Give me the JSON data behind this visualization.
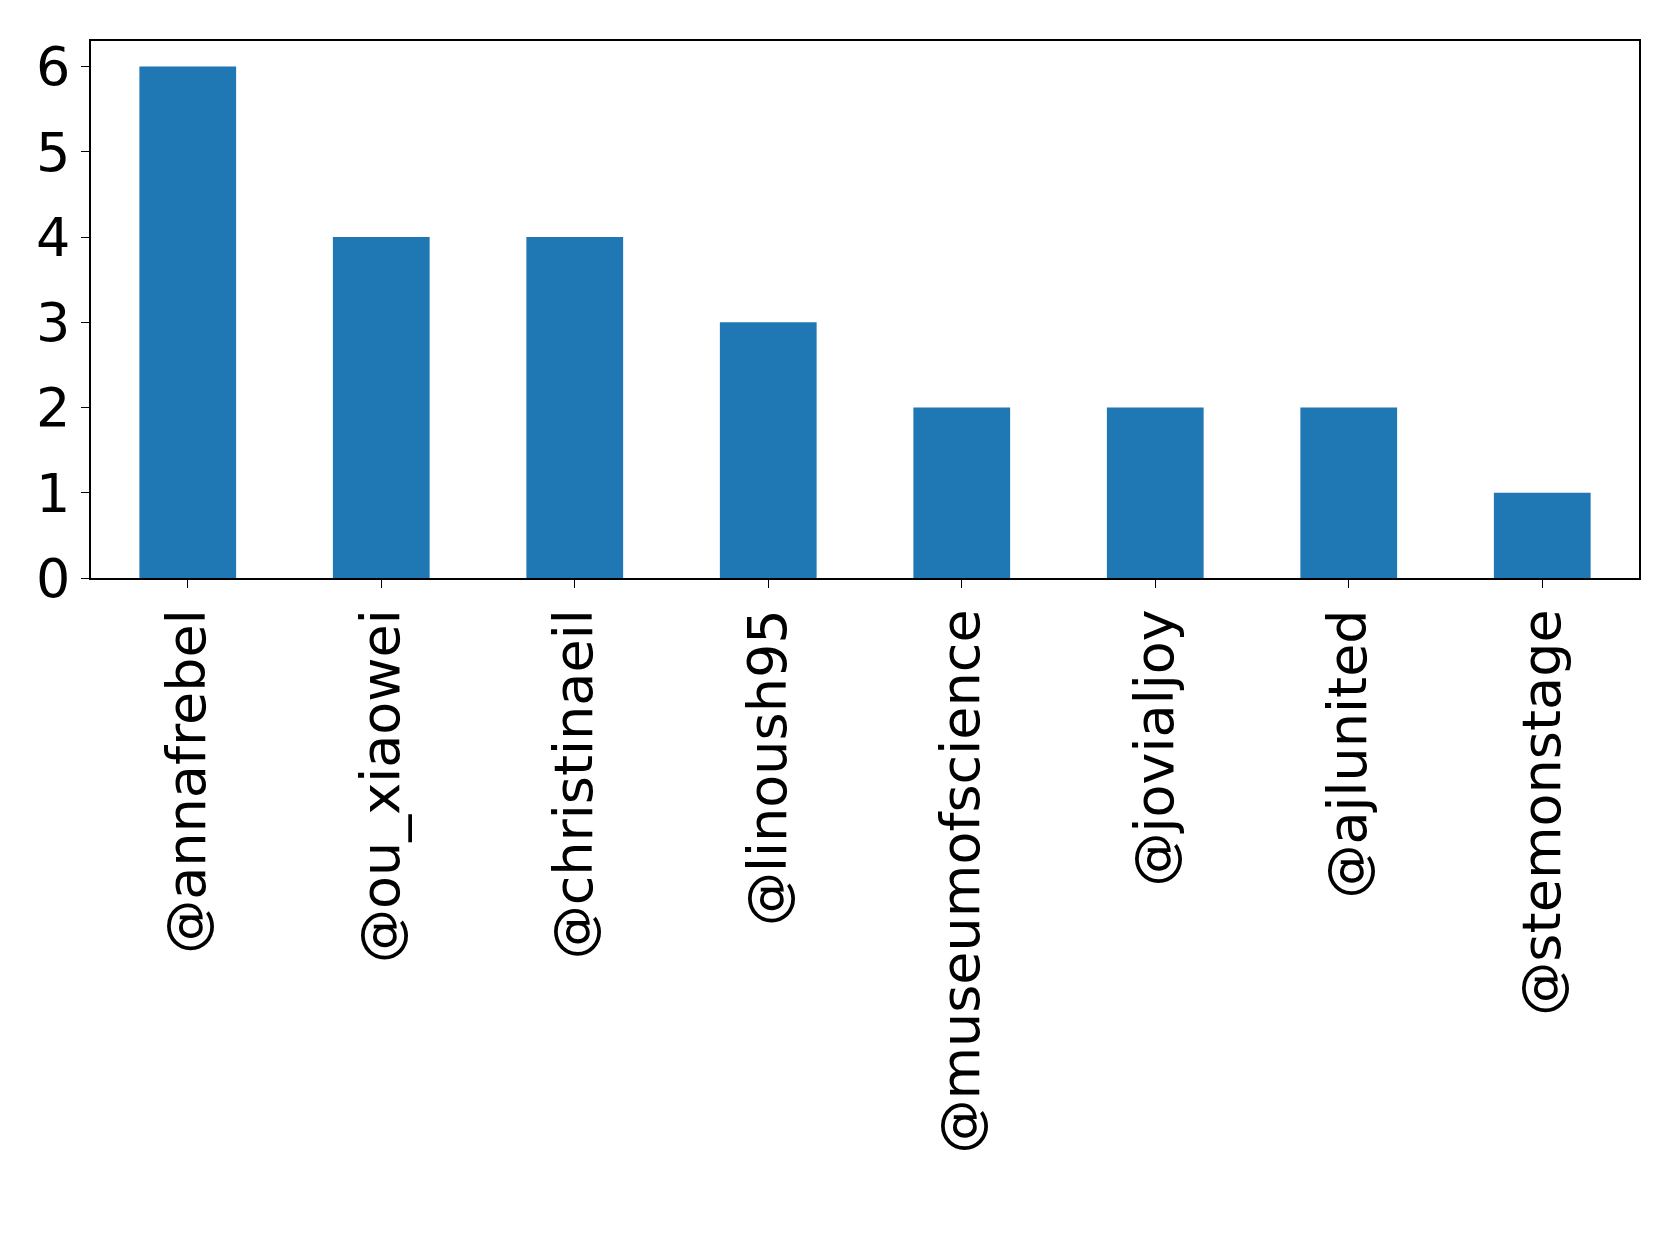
{
  "chart_data": {
    "type": "bar",
    "categories": [
      "@annafrebel",
      "@ou_xiaowei",
      "@christinaeil",
      "@linoush95",
      "@museumofscience",
      "@jovialjoy",
      "@ajlunited",
      "@stemonstage"
    ],
    "values": [
      6,
      4,
      4,
      3,
      2,
      2,
      2,
      1
    ],
    "color": "#1f77b4",
    "ylim": [
      0,
      6.3
    ],
    "yticks": [
      0,
      1,
      2,
      3,
      4,
      5,
      6
    ]
  }
}
